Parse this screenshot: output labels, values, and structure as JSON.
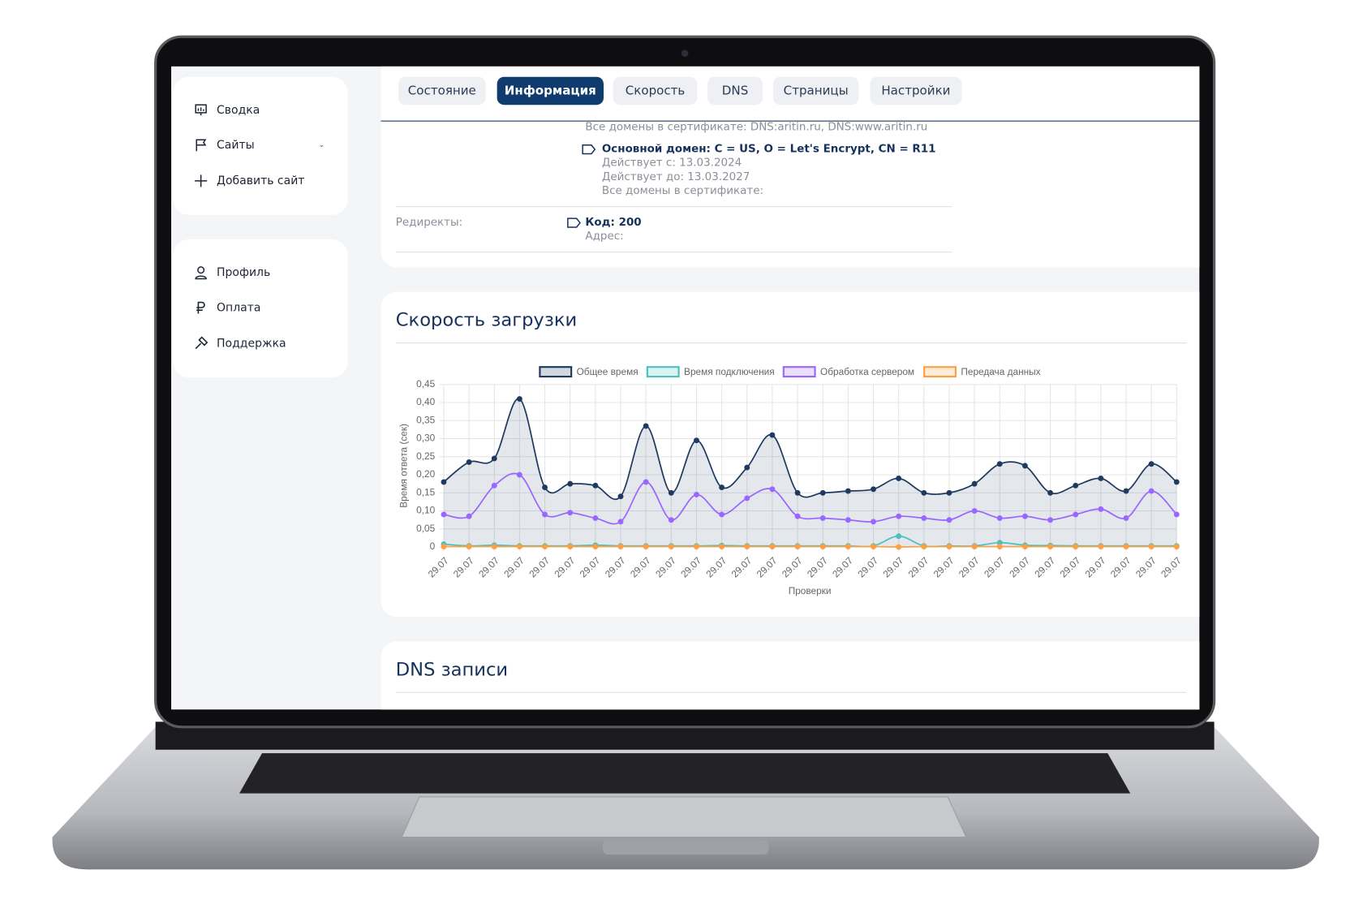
{
  "sidebar": {
    "nav": [
      "Сводка",
      "Сайты",
      "Добавить сайт"
    ],
    "account": [
      "Профиль",
      "Оплата",
      "Поддержка"
    ]
  },
  "tabs": [
    "Состояние",
    "Информация",
    "Скорость",
    "DNS",
    "Страницы",
    "Настройки"
  ],
  "active_tab": 1,
  "certificate": {
    "all_domains_prev": "Все домены в сертификате: DNS:aritin.ru, DNS:www.aritin.ru",
    "primary": "Основной домен: C = US, O = Let's Encrypt, CN = R11",
    "valid_from": "Действует с: 13.03.2024",
    "valid_to": "Действует до: 13.03.2027",
    "all_domains": "Все домены в сертификате:"
  },
  "redirects": {
    "label": "Редиректы:",
    "code": "Код: 200",
    "address": "Адрес:"
  },
  "chart_data": {
    "type": "line",
    "title": "Скорость загрузки",
    "x_label": "Проверки",
    "y_label": "Время ответа (сек)",
    "categories": [
      "29.07",
      "29.07",
      "29.07",
      "29.07",
      "29.07",
      "29.07",
      "29.07",
      "29.07",
      "29.07",
      "29.07",
      "29.07",
      "29.07",
      "29.07",
      "29.07",
      "29.07",
      "29.07",
      "29.07",
      "29.07",
      "29.07",
      "29.07",
      "29.07",
      "29.07",
      "29.07",
      "29.07",
      "29.07",
      "29.07",
      "29.07",
      "29.07",
      "29.07",
      "29.07"
    ],
    "ylim": [
      0,
      0.45
    ],
    "yticks": [
      0,
      {
        "value": 0.05,
        "label": "0,05"
      },
      {
        "value": 0.1,
        "label": "0,10"
      },
      {
        "value": 0.15,
        "label": "0,15"
      },
      {
        "value": 0.2,
        "label": "0,20"
      },
      {
        "value": 0.25,
        "label": "0,25"
      },
      {
        "value": 0.3,
        "label": "0,30"
      },
      {
        "value": 0.35,
        "label": "0,35"
      },
      {
        "value": 0.4,
        "label": "0,40"
      },
      {
        "value": 0.45,
        "label": "0,45"
      }
    ],
    "grid": true,
    "legend": "top",
    "series": [
      {
        "name": "Общее время",
        "color": "#1f3a5f",
        "fill": true,
        "values": [
          0.18,
          0.235,
          0.245,
          0.41,
          0.165,
          0.175,
          0.17,
          0.14,
          0.335,
          0.15,
          0.295,
          0.165,
          0.22,
          0.31,
          0.15,
          0.15,
          0.155,
          0.16,
          0.19,
          0.15,
          0.15,
          0.175,
          0.23,
          0.225,
          0.15,
          0.17,
          0.19,
          0.155,
          0.23,
          0.18
        ]
      },
      {
        "name": "Время подключения",
        "color": "#4bc0c0",
        "values": [
          0.008,
          0.003,
          0.005,
          0.003,
          0.003,
          0.003,
          0.005,
          0.003,
          0.003,
          0.003,
          0.003,
          0.004,
          0.003,
          0.003,
          0.003,
          0.003,
          0.003,
          0.003,
          0.03,
          0.003,
          0.003,
          0.003,
          0.012,
          0.005,
          0.004,
          0.003,
          0.003,
          0.003,
          0.003,
          0.003
        ]
      },
      {
        "name": "Обработка сервером",
        "color": "#9966ff",
        "values": [
          0.09,
          0.085,
          0.17,
          0.2,
          0.09,
          0.095,
          0.08,
          0.07,
          0.18,
          0.075,
          0.145,
          0.09,
          0.135,
          0.16,
          0.085,
          0.08,
          0.075,
          0.07,
          0.085,
          0.08,
          0.075,
          0.1,
          0.08,
          0.085,
          0.075,
          0.09,
          0.105,
          0.08,
          0.155,
          0.09
        ]
      },
      {
        "name": "Передача данных",
        "color": "#ff9f40",
        "values": [
          0.001,
          0.001,
          0.001,
          0.001,
          0.001,
          0.001,
          0.001,
          0.001,
          0.001,
          0.001,
          0.001,
          0.001,
          0.001,
          0.001,
          0.001,
          0.001,
          0.001,
          0.001,
          0,
          0.001,
          0.001,
          0.001,
          0.001,
          0.001,
          0.001,
          0.001,
          0.001,
          0.001,
          0.001,
          0.001
        ]
      }
    ]
  },
  "dns_card": {
    "title": "DNS записи"
  }
}
